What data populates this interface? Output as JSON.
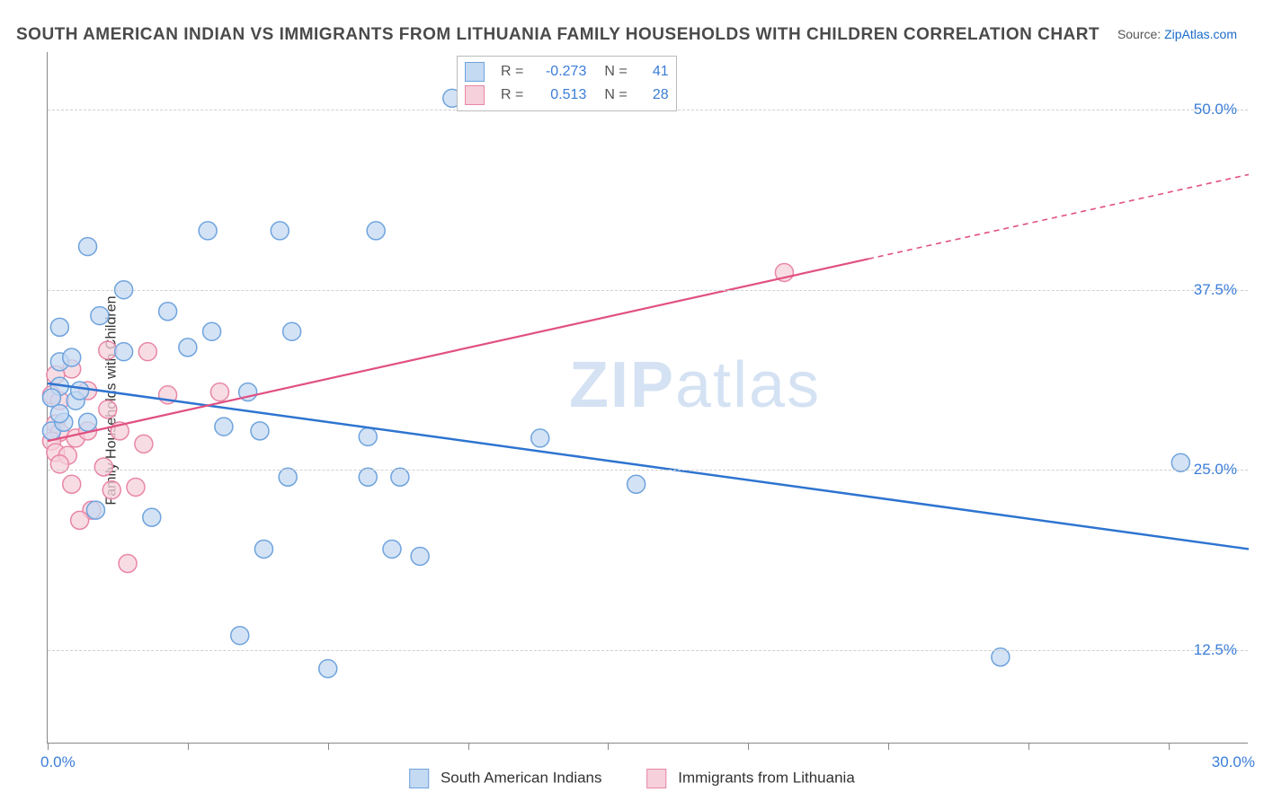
{
  "title": "SOUTH AMERICAN INDIAN VS IMMIGRANTS FROM LITHUANIA FAMILY HOUSEHOLDS WITH CHILDREN CORRELATION CHART",
  "source_label": "Source:",
  "source_name": "ZipAtlas.com",
  "ylabel": "Family Households with Children",
  "watermark": "ZIPatlas",
  "chart": {
    "type": "scatter",
    "x_domain": [
      0,
      30
    ],
    "y_domain": [
      6,
      54
    ],
    "y_gridlines": [
      12.5,
      25.0,
      37.5,
      50.0
    ],
    "y_tick_labels": [
      "12.5%",
      "25.0%",
      "37.5%",
      "50.0%"
    ],
    "x_ticks": [
      0,
      3.5,
      7,
      10.5,
      14,
      17.5,
      21,
      24.5,
      28
    ],
    "x_axis_labels": [
      {
        "value": 0,
        "text": "0.0%"
      },
      {
        "value": 30,
        "text": "30.0%"
      }
    ],
    "background_color": "#ffffff",
    "grid_color": "#d0d0d0",
    "axis_color": "#888888",
    "series": [
      {
        "name": "South American Indians",
        "color_fill": "#c4d9f2",
        "color_stroke": "#6fa3dd",
        "line_color": "#2e74d0",
        "marker_radius": 10,
        "marker_opacity": 0.75,
        "R": "-0.273",
        "N": "41",
        "trend": {
          "x1": 0,
          "y1": 31.0,
          "x2": 30,
          "y2": 19.5,
          "dashed_from_x": null
        },
        "points": [
          [
            10.1,
            50.8
          ],
          [
            1.0,
            40.5
          ],
          [
            4.0,
            41.6
          ],
          [
            5.8,
            41.6
          ],
          [
            8.2,
            41.6
          ],
          [
            1.9,
            37.5
          ],
          [
            1.3,
            35.7
          ],
          [
            0.3,
            34.9
          ],
          [
            3.0,
            36.0
          ],
          [
            4.1,
            34.6
          ],
          [
            1.9,
            33.2
          ],
          [
            3.5,
            33.5
          ],
          [
            6.1,
            34.6
          ],
          [
            0.3,
            32.5
          ],
          [
            0.6,
            32.8
          ],
          [
            0.3,
            30.8
          ],
          [
            0.1,
            30.0
          ],
          [
            0.1,
            27.7
          ],
          [
            0.4,
            28.3
          ],
          [
            0.7,
            29.8
          ],
          [
            1.0,
            28.3
          ],
          [
            5.0,
            30.4
          ],
          [
            4.4,
            28.0
          ],
          [
            5.3,
            27.7
          ],
          [
            8.0,
            27.3
          ],
          [
            6.0,
            24.5
          ],
          [
            8.0,
            24.5
          ],
          [
            8.8,
            24.5
          ],
          [
            12.3,
            27.2
          ],
          [
            14.7,
            24.0
          ],
          [
            28.3,
            25.5
          ],
          [
            1.2,
            22.2
          ],
          [
            2.6,
            21.7
          ],
          [
            5.4,
            19.5
          ],
          [
            8.6,
            19.5
          ],
          [
            9.3,
            19.0
          ],
          [
            7.0,
            11.2
          ],
          [
            4.8,
            13.5
          ],
          [
            23.8,
            12.0
          ],
          [
            0.3,
            28.9
          ],
          [
            0.8,
            30.5
          ]
        ]
      },
      {
        "name": "Immigrants from Lithuania",
        "color_fill": "#f6d0db",
        "color_stroke": "#e986a6",
        "line_color": "#e15082",
        "marker_radius": 10,
        "marker_opacity": 0.75,
        "R": "0.513",
        "N": "28",
        "trend": {
          "x1": 0,
          "y1": 27.0,
          "x2": 30,
          "y2": 45.5,
          "dashed_from_x": 20.5
        },
        "points": [
          [
            18.4,
            38.7
          ],
          [
            1.5,
            33.3
          ],
          [
            2.5,
            33.2
          ],
          [
            0.6,
            32.0
          ],
          [
            0.2,
            31.6
          ],
          [
            0.1,
            30.2
          ],
          [
            0.3,
            29.8
          ],
          [
            1.0,
            30.5
          ],
          [
            1.5,
            29.2
          ],
          [
            3.0,
            30.2
          ],
          [
            4.3,
            30.4
          ],
          [
            0.2,
            28.2
          ],
          [
            0.3,
            27.6
          ],
          [
            0.1,
            27.0
          ],
          [
            0.7,
            27.2
          ],
          [
            1.0,
            27.7
          ],
          [
            1.8,
            27.7
          ],
          [
            0.2,
            26.2
          ],
          [
            0.5,
            26.0
          ],
          [
            0.3,
            25.4
          ],
          [
            1.4,
            25.2
          ],
          [
            1.6,
            23.6
          ],
          [
            2.2,
            23.8
          ],
          [
            0.6,
            24.0
          ],
          [
            1.1,
            22.2
          ],
          [
            0.8,
            21.5
          ],
          [
            2.4,
            26.8
          ],
          [
            2.0,
            18.5
          ]
        ]
      }
    ]
  },
  "stats_box": {
    "R_label": "R =",
    "N_label": "N ="
  },
  "bottom_legend": {
    "series1_label": "South American Indians",
    "series2_label": "Immigrants from Lithuania"
  }
}
